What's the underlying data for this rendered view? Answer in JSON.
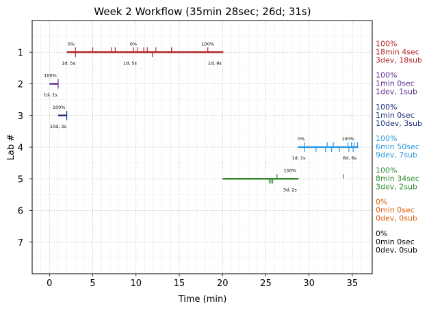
{
  "chart_data": {
    "type": "timeline",
    "title": "Week 2 Workflow (35min 28sec; 26d; 31s)",
    "xlabel": "Time (min)",
    "ylabel": "Lab #",
    "xlim": [
      -2,
      37.3
    ],
    "ylim": [
      8,
      0
    ],
    "x_ticks": [
      0,
      5,
      10,
      15,
      20,
      25,
      30,
      35
    ],
    "y_ticks": [
      1,
      2,
      3,
      4,
      5,
      6,
      7
    ],
    "grid": true,
    "labs": [
      {
        "lab": 1,
        "color": "#b22222",
        "segments": [
          [
            2,
            20.1
          ]
        ],
        "marks_up": [
          3,
          5,
          7.2,
          7.6,
          9.7,
          10.2,
          10.9,
          11.3,
          12.3,
          14.1,
          18.3
        ],
        "marks_down": [
          3,
          11.9
        ],
        "annotations": [
          {
            "x": 2.5,
            "pos": "above",
            "text": "0%"
          },
          {
            "x": 9.7,
            "pos": "above",
            "text": "0%"
          },
          {
            "x": 18.3,
            "pos": "above",
            "text": "100%"
          },
          {
            "x": 2.2,
            "pos": "below",
            "text": "1d, 5s"
          },
          {
            "x": 9.3,
            "pos": "below",
            "text": "1d, 5s"
          },
          {
            "x": 19.1,
            "pos": "below",
            "text": "1d, 8s"
          }
        ],
        "summary": [
          "100%",
          "18min 4sec",
          "3dev, 18sub"
        ]
      },
      {
        "lab": 2,
        "color": "#5b2a8c",
        "segments": [
          [
            0,
            1
          ]
        ],
        "marks_up": [
          1
        ],
        "marks_down": [
          1
        ],
        "annotations": [
          {
            "x": 0.1,
            "pos": "above",
            "text": "100%"
          },
          {
            "x": 0.1,
            "pos": "below",
            "text": "1d, 1s"
          }
        ],
        "summary": [
          "100%",
          "1min 0sec",
          "1dev, 1sub"
        ]
      },
      {
        "lab": 3,
        "color": "#1a2a7a",
        "segments": [
          [
            1,
            2
          ]
        ],
        "marks_up": [
          2
        ],
        "marks_down": [
          2
        ],
        "annotations": [
          {
            "x": 1.1,
            "pos": "above",
            "text": "100%"
          },
          {
            "x": 1,
            "pos": "below",
            "text": "10d, 3s"
          }
        ],
        "summary": [
          "100%",
          "1min 0sec",
          "10dev, 3sub"
        ]
      },
      {
        "lab": 4,
        "color": "#2a9ae0",
        "segments": [
          [
            28.7,
            35.7
          ]
        ],
        "marks_up": [
          29.5,
          32.1,
          32.8,
          34.5,
          34.9,
          35.2,
          35.6
        ],
        "marks_down": [
          29.5,
          30.8,
          31.9,
          32.6,
          33.5,
          34.6,
          35.1
        ],
        "annotations": [
          {
            "x": 29.1,
            "pos": "above",
            "text": "0%"
          },
          {
            "x": 34.5,
            "pos": "above",
            "text": "100%"
          },
          {
            "x": 28.8,
            "pos": "below",
            "text": "1d, 1s"
          },
          {
            "x": 34.7,
            "pos": "below",
            "text": "8d, 6s"
          }
        ],
        "summary": [
          "100%",
          "6min 50sec",
          "9dev, 7sub"
        ]
      },
      {
        "lab": 5,
        "color": "#2e8b2e",
        "segments": [
          [
            20,
            28.8
          ]
        ],
        "marks_up": [
          26.3,
          34
        ],
        "marks_down": [
          25.4,
          25.6,
          25.8
        ],
        "annotations": [
          {
            "x": 27.8,
            "pos": "above",
            "text": "100%"
          },
          {
            "x": 27.8,
            "pos": "below",
            "text": "3d, 2s"
          }
        ],
        "summary": [
          "100%",
          "8min 34sec",
          "3dev, 2sub"
        ]
      },
      {
        "lab": 6,
        "color": "#e0600a",
        "segments": [],
        "marks_up": [],
        "marks_down": [],
        "annotations": [],
        "summary": [
          "0%",
          "0min 0sec",
          "0dev, 0sub"
        ]
      },
      {
        "lab": 7,
        "color": "#000000",
        "segments": [],
        "marks_up": [],
        "marks_down": [],
        "annotations": [],
        "summary": [
          "0%",
          "0min 0sec",
          "0dev, 0sub"
        ]
      }
    ]
  }
}
